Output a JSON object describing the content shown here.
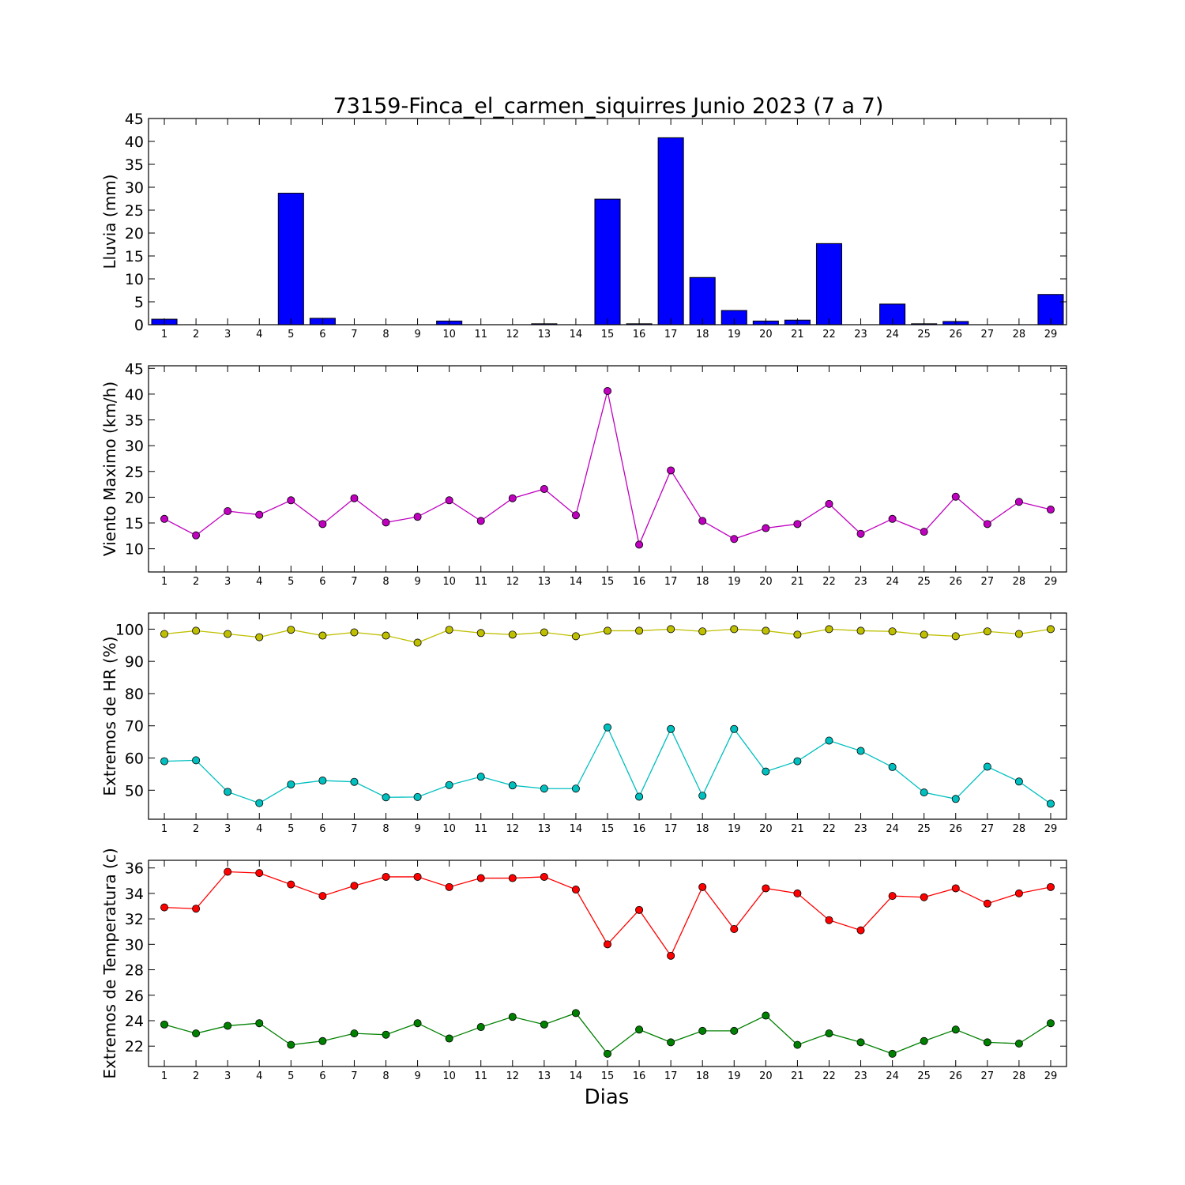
{
  "figure": {
    "title": "73159-Finca_el_carmen_siquirres Junio 2023  (7 a 7)",
    "xlabel": "Dias"
  },
  "chart_data": [
    {
      "id": "lluvia",
      "type": "bar",
      "ylabel": "Lluvia (mm)",
      "ylim": [
        0,
        45
      ],
      "yticks": [
        0,
        5,
        10,
        15,
        20,
        25,
        30,
        35,
        40,
        45
      ],
      "x": [
        1,
        2,
        3,
        4,
        5,
        6,
        7,
        8,
        9,
        10,
        11,
        12,
        13,
        14,
        15,
        16,
        17,
        18,
        19,
        20,
        21,
        22,
        23,
        24,
        25,
        26,
        27,
        28,
        29
      ],
      "series": [
        {
          "color": "#0000ff",
          "values": [
            1.2,
            0,
            0,
            0,
            28.7,
            1.4,
            0,
            0,
            0,
            0.8,
            0,
            0,
            0.2,
            0,
            27.4,
            0.2,
            40.8,
            10.3,
            3.1,
            0.8,
            1.0,
            17.7,
            0,
            4.5,
            0.2,
            0.7,
            0,
            0,
            6.6
          ]
        }
      ]
    },
    {
      "id": "viento",
      "type": "line",
      "ylabel": "Viento Maximo (km/h)",
      "ylim": [
        5.5,
        45.5
      ],
      "yticks": [
        10,
        15,
        20,
        25,
        30,
        35,
        40,
        45
      ],
      "x": [
        1,
        2,
        3,
        4,
        5,
        6,
        7,
        8,
        9,
        10,
        11,
        12,
        13,
        14,
        15,
        16,
        17,
        18,
        19,
        20,
        21,
        22,
        23,
        24,
        25,
        26,
        27,
        28,
        29
      ],
      "series": [
        {
          "color": "#bf00bf",
          "values": [
            15.8,
            12.6,
            17.3,
            16.6,
            19.4,
            14.8,
            19.8,
            15.1,
            16.2,
            19.4,
            15.4,
            19.8,
            21.6,
            16.5,
            40.6,
            10.8,
            25.2,
            15.4,
            11.9,
            14.0,
            14.8,
            18.7,
            12.9,
            15.8,
            13.3,
            20.1,
            14.8,
            19.1,
            17.6
          ]
        }
      ]
    },
    {
      "id": "hr",
      "type": "line",
      "ylabel": "Extremos de HR (%)",
      "ylim": [
        41,
        105
      ],
      "yticks": [
        50,
        60,
        70,
        80,
        90,
        100
      ],
      "x": [
        1,
        2,
        3,
        4,
        5,
        6,
        7,
        8,
        9,
        10,
        11,
        12,
        13,
        14,
        15,
        16,
        17,
        18,
        19,
        20,
        21,
        22,
        23,
        24,
        25,
        26,
        27,
        28,
        29
      ],
      "series": [
        {
          "color": "#bfbf00",
          "values": [
            98.5,
            99.5,
            98.5,
            97.5,
            99.8,
            98.0,
            99.0,
            98.0,
            95.8,
            99.8,
            98.8,
            98.3,
            99.0,
            97.8,
            99.5,
            99.5,
            100,
            99.3,
            100,
            99.5,
            98.3,
            100,
            99.5,
            99.3,
            98.3,
            97.8,
            99.3,
            98.5,
            100
          ]
        },
        {
          "color": "#00bfbf",
          "values": [
            59.0,
            59.3,
            49.5,
            46.0,
            51.8,
            53.0,
            52.6,
            47.8,
            47.9,
            51.6,
            54.2,
            51.5,
            50.5,
            50.5,
            69.5,
            48.0,
            69.0,
            48.3,
            69.0,
            55.8,
            59.0,
            65.4,
            62.2,
            57.2,
            49.3,
            47.3,
            57.3,
            52.7,
            45.8
          ]
        }
      ]
    },
    {
      "id": "temp",
      "type": "line",
      "ylabel": "Extremos de Temperatura (c)",
      "ylim": [
        20.4,
        36.6
      ],
      "yticks": [
        22,
        24,
        26,
        28,
        30,
        32,
        34,
        36
      ],
      "x": [
        1,
        2,
        3,
        4,
        5,
        6,
        7,
        8,
        9,
        10,
        11,
        12,
        13,
        14,
        15,
        16,
        17,
        18,
        19,
        20,
        21,
        22,
        23,
        24,
        25,
        26,
        27,
        28,
        29
      ],
      "series": [
        {
          "color": "#ff0000",
          "values": [
            32.9,
            32.8,
            35.7,
            35.6,
            34.7,
            33.8,
            34.6,
            35.3,
            35.3,
            34.5,
            35.2,
            35.2,
            35.3,
            34.3,
            30.0,
            32.7,
            29.1,
            34.5,
            31.2,
            34.4,
            34.0,
            31.9,
            31.1,
            33.8,
            33.7,
            34.4,
            33.2,
            34.0,
            34.5
          ]
        },
        {
          "color": "#008000",
          "values": [
            23.7,
            23.0,
            23.6,
            23.8,
            22.1,
            22.4,
            23.0,
            22.9,
            23.8,
            22.6,
            23.5,
            24.3,
            23.7,
            24.6,
            21.4,
            23.3,
            22.3,
            23.2,
            23.2,
            24.4,
            22.1,
            23.0,
            22.3,
            21.4,
            22.4,
            23.3,
            22.3,
            22.2,
            23.8
          ]
        }
      ]
    }
  ]
}
